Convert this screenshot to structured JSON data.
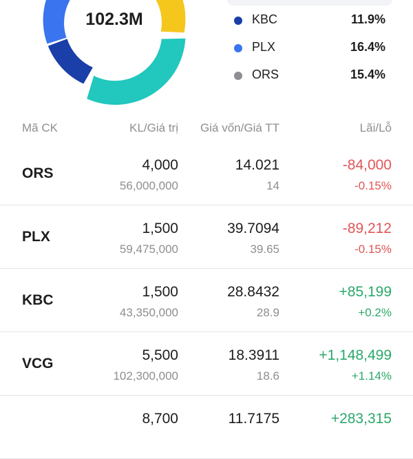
{
  "portfolio": {
    "total": "102.3M",
    "colors": {
      "kbc": "#1a3fa8",
      "plx": "#3a74ee",
      "ors": "#8e8e93",
      "teal": "#22c7bd",
      "yellow": "#f5c61c"
    },
    "legend": [
      {
        "code": "KBC",
        "pct": "11.9%",
        "color": "#1a3fa8"
      },
      {
        "code": "PLX",
        "pct": "16.4%",
        "color": "#3a74ee"
      },
      {
        "code": "ORS",
        "pct": "15.4%",
        "color": "#8e8e93"
      }
    ]
  },
  "table": {
    "headers": {
      "symbol": "Mã CK",
      "qty_value": "KL/Giá trị",
      "cost_price": "Giá vốn/Giá TT",
      "pl": "Lãi/Lỗ"
    },
    "rows": [
      {
        "symbol": "ORS",
        "qty": "4,000",
        "value": "56,000,000",
        "cost": "14.021",
        "price": "14",
        "pl": "-84,000",
        "pl_pct": "-0.15%",
        "trend": "loss"
      },
      {
        "symbol": "PLX",
        "qty": "1,500",
        "value": "59,475,000",
        "cost": "39.7094",
        "price": "39.65",
        "pl": "-89,212",
        "pl_pct": "-0.15%",
        "trend": "loss"
      },
      {
        "symbol": "KBC",
        "qty": "1,500",
        "value": "43,350,000",
        "cost": "28.8432",
        "price": "28.9",
        "pl": "+85,199",
        "pl_pct": "+0.2%",
        "trend": "gain"
      },
      {
        "symbol": "VCG",
        "qty": "5,500",
        "value": "102,300,000",
        "cost": "18.3911",
        "price": "18.6",
        "pl": "+1,148,499",
        "pl_pct": "+1.14%",
        "trend": "gain"
      },
      {
        "symbol": "",
        "qty": "8,700",
        "value": "",
        "cost": "11.7175",
        "price": "",
        "pl": "+283,315",
        "pl_pct": "",
        "trend": "gain"
      }
    ]
  }
}
